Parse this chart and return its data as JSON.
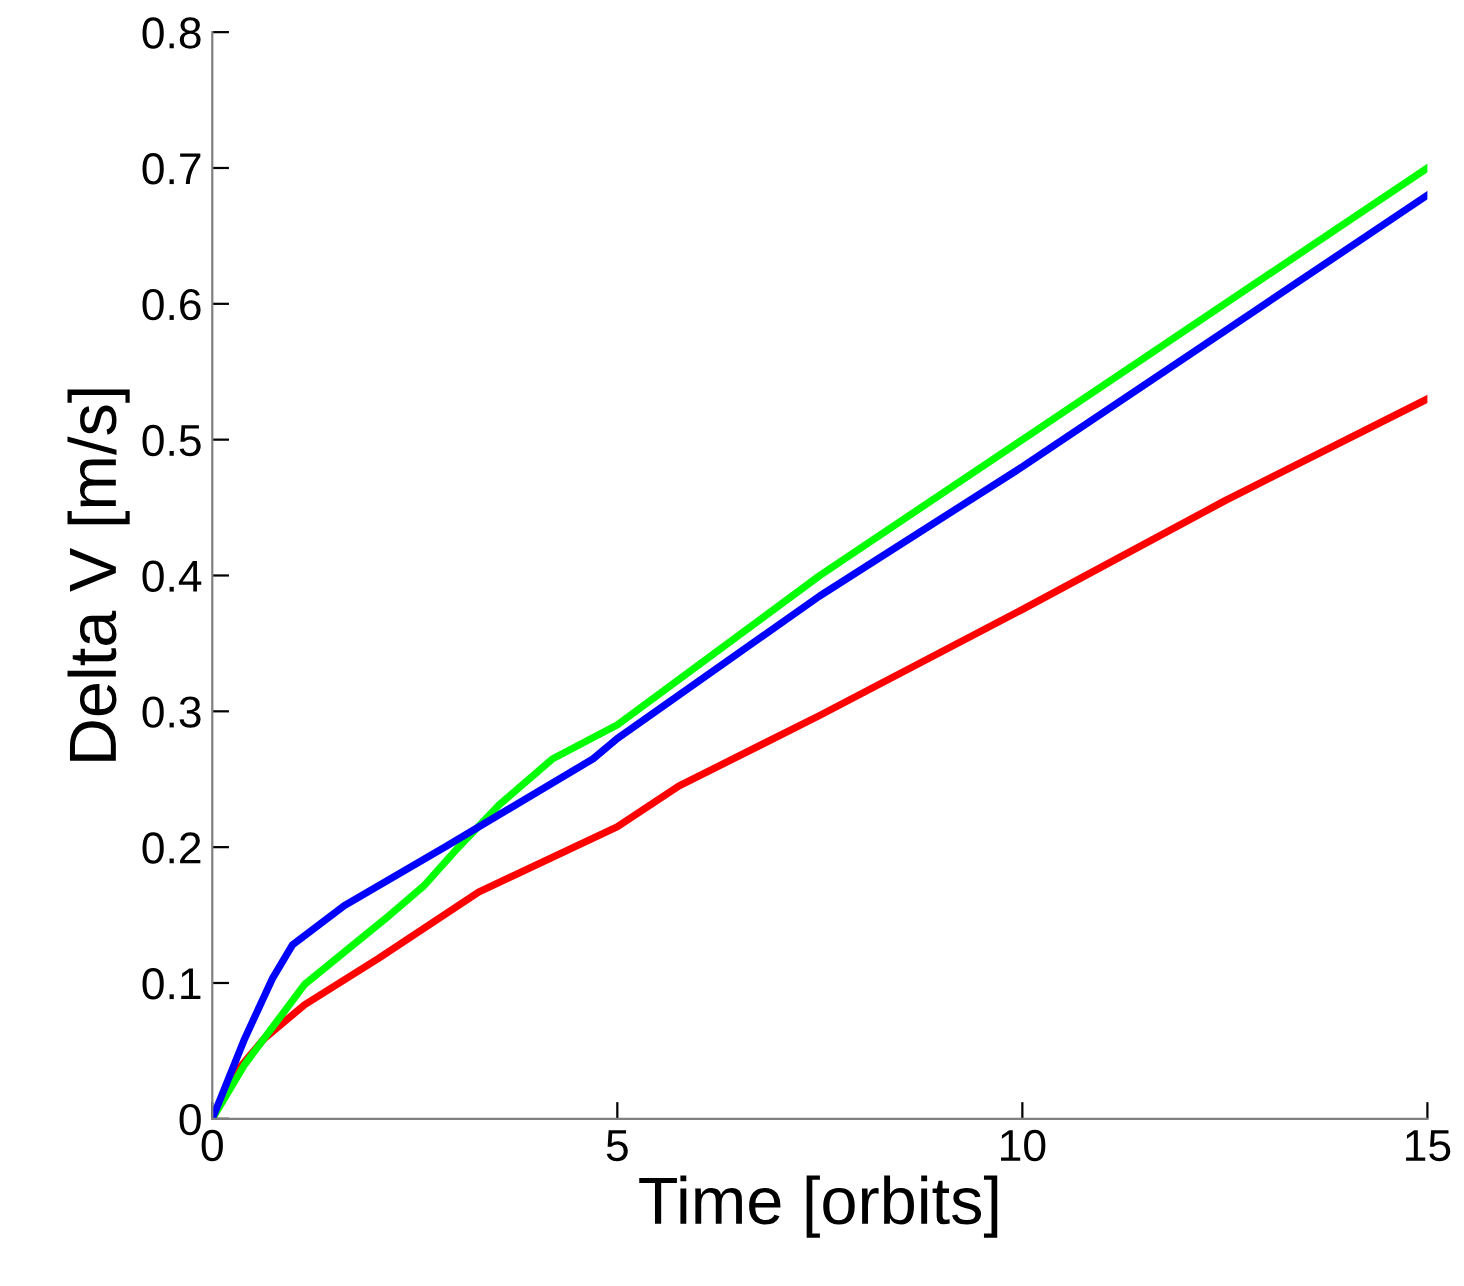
{
  "chart_data": {
    "type": "line",
    "xlabel": "Time [orbits]",
    "ylabel": "Delta V [m/s]",
    "xlim": [
      0,
      15
    ],
    "ylim": [
      0,
      0.8
    ],
    "xticks": [
      0,
      5,
      10,
      15
    ],
    "yticks": [
      0,
      0.1,
      0.2,
      0.3,
      0.4,
      0.5,
      0.6,
      0.7,
      0.8
    ],
    "grid": false,
    "legend": false,
    "marker": "none",
    "line_style": "solid",
    "series": [
      {
        "color": "#ff0000",
        "x": [
          0,
          0.3,
          0.64,
          1.14,
          2.05,
          3.29,
          5,
          5.76,
          7.5,
          10,
          12.5,
          15
        ],
        "values": [
          0,
          0.035,
          0.059,
          0.084,
          0.118,
          0.167,
          0.215,
          0.245,
          0.297,
          0.375,
          0.455,
          0.53
        ]
      },
      {
        "color": "#00ff00",
        "x": [
          0,
          0.4,
          1.14,
          2.13,
          2.62,
          3.04,
          3.54,
          4.2,
          5,
          7.5,
          10,
          12.5,
          15
        ],
        "values": [
          0,
          0.04,
          0.099,
          0.147,
          0.172,
          0.2,
          0.231,
          0.265,
          0.29,
          0.4,
          0.5,
          0.6,
          0.7
        ]
      },
      {
        "color": "#0000ff",
        "x": [
          0,
          0.4,
          0.74,
          0.99,
          1.63,
          2.87,
          4.7,
          5,
          7.5,
          10,
          12.5,
          15
        ],
        "values": [
          0,
          0.059,
          0.103,
          0.128,
          0.157,
          0.2,
          0.265,
          0.28,
          0.385,
          0.48,
          0.58,
          0.68
        ]
      }
    ]
  }
}
